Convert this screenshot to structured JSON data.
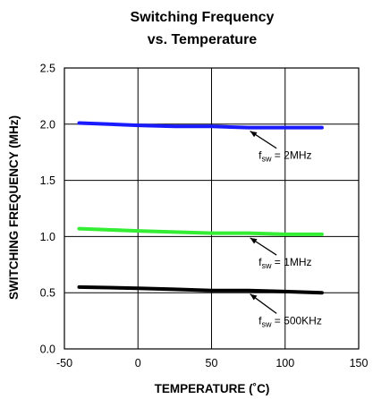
{
  "chart_data": {
    "type": "line",
    "title": "Switching Frequency vs. Temperature",
    "title_lines": [
      "Switching Frequency",
      "vs. Temperature"
    ],
    "xlabel": "TEMPERATURE (˚C)",
    "ylabel": "SWITCHING FREQUENCY (MHz)",
    "xlim": [
      -50,
      150
    ],
    "ylim": [
      0.0,
      2.5
    ],
    "xticks": [
      -50,
      0,
      50,
      100,
      150
    ],
    "xtick_labels": [
      "-50",
      "0",
      "50",
      "100",
      "150"
    ],
    "yticks": [
      0.0,
      0.5,
      1.0,
      1.5,
      2.0,
      2.5
    ],
    "ytick_labels": [
      "0.0",
      "0.5",
      "1.0",
      "1.5",
      "2.0",
      "2.5"
    ],
    "grid": true,
    "legend": "none",
    "series": [
      {
        "color": "#1a1aff",
        "annotation": {
          "prefix": "f",
          "sub": "sw",
          "suffix": " = 2MHz",
          "point": [
            75,
            1.97
          ],
          "text_at": [
            82,
            1.69
          ]
        },
        "x": [
          -40,
          0,
          25,
          50,
          75,
          100,
          125
        ],
        "y": [
          2.01,
          1.99,
          1.98,
          1.98,
          1.97,
          1.97,
          1.97
        ]
      },
      {
        "color": "#33ee33",
        "annotation": {
          "prefix": "f",
          "sub": "sw",
          "suffix": " = 1MHz",
          "point": [
            75,
            1.02
          ],
          "text_at": [
            82,
            0.74
          ]
        },
        "x": [
          -40,
          0,
          25,
          50,
          75,
          100,
          125
        ],
        "y": [
          1.07,
          1.05,
          1.04,
          1.03,
          1.03,
          1.02,
          1.02
        ]
      },
      {
        "color": "#000000",
        "annotation": {
          "prefix": "f",
          "sub": "sw",
          "suffix": " = 500KHz",
          "point": [
            75,
            0.52
          ],
          "text_at": [
            82,
            0.22
          ]
        },
        "x": [
          -40,
          0,
          25,
          50,
          75,
          100,
          125
        ],
        "y": [
          0.55,
          0.54,
          0.53,
          0.52,
          0.52,
          0.51,
          0.5
        ]
      }
    ]
  }
}
